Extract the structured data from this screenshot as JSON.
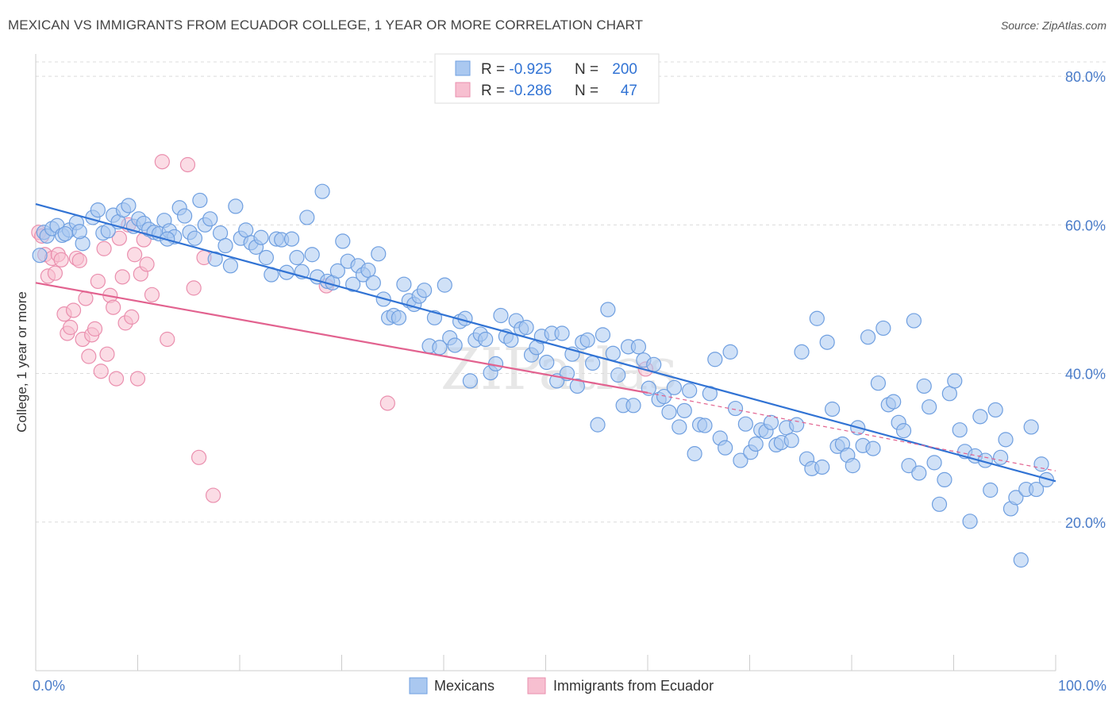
{
  "title": "MEXICAN VS IMMIGRANTS FROM ECUADOR COLLEGE, 1 YEAR OR MORE CORRELATION CHART",
  "source": "Source: ZipAtlas.com",
  "watermark": "ZIPatlas",
  "colors": {
    "blue_fill": "#aac8f0",
    "blue_stroke": "#6f9fe0",
    "blue_line": "#3173d4",
    "pink_fill": "#f7bfd0",
    "pink_stroke": "#ea8fae",
    "pink_line": "#e2628f",
    "axis_label": "#4a7cc9"
  },
  "legend": {
    "rows": [
      {
        "r_label": "R =",
        "r_value": "-0.925",
        "n_label": "N =",
        "n_value": "200"
      },
      {
        "r_label": "R =",
        "r_value": "-0.286",
        "n_label": "N =",
        "n_value": "47"
      }
    ]
  },
  "chart_data": {
    "type": "scatter",
    "title": "MEXICAN VS IMMIGRANTS FROM ECUADOR COLLEGE, 1 YEAR OR MORE CORRELATION CHART",
    "xlabel": "",
    "ylabel": "College, 1 year or more",
    "xlim": [
      0,
      100
    ],
    "ylim": [
      0,
      83
    ],
    "x_tick_labels": [
      "0.0%",
      "100.0%"
    ],
    "y_ticks": [
      20,
      40,
      60,
      80
    ],
    "y_tick_labels": [
      "20.0%",
      "40.0%",
      "60.0%",
      "80.0%"
    ],
    "grid": true,
    "legend_placement": "top-center",
    "series": [
      {
        "name": "Mexicans",
        "r": -0.925,
        "n": 200,
        "trend": {
          "x": [
            0,
            100
          ],
          "y": [
            62.8,
            25.5
          ]
        },
        "points": [
          [
            0.4,
            55.9
          ],
          [
            0.8,
            59.0
          ],
          [
            1.1,
            58.5
          ],
          [
            1.6,
            59.5
          ],
          [
            2.1,
            59.9
          ],
          [
            2.6,
            58.6
          ],
          [
            3.3,
            59.3
          ],
          [
            4.0,
            60.3
          ],
          [
            4.6,
            57.5
          ],
          [
            5.6,
            61.0
          ],
          [
            6.1,
            62.0
          ],
          [
            6.6,
            58.9
          ],
          [
            7.1,
            59.2
          ],
          [
            7.6,
            61.3
          ],
          [
            8.1,
            60.4
          ],
          [
            8.6,
            62.0
          ],
          [
            9.1,
            62.6
          ],
          [
            9.6,
            59.8
          ],
          [
            10.1,
            60.8
          ],
          [
            10.6,
            60.2
          ],
          [
            11.1,
            59.4
          ],
          [
            11.6,
            59.0
          ],
          [
            12.1,
            58.8
          ],
          [
            12.6,
            60.6
          ],
          [
            13.1,
            59.2
          ],
          [
            13.6,
            58.4
          ],
          [
            14.1,
            62.3
          ],
          [
            14.6,
            61.2
          ],
          [
            15.1,
            59.0
          ],
          [
            15.6,
            58.2
          ],
          [
            16.1,
            63.3
          ],
          [
            16.6,
            60.0
          ],
          [
            17.1,
            60.8
          ],
          [
            17.6,
            55.4
          ],
          [
            18.1,
            58.9
          ],
          [
            18.6,
            57.2
          ],
          [
            19.1,
            54.5
          ],
          [
            19.6,
            62.5
          ],
          [
            20.1,
            58.2
          ],
          [
            20.6,
            59.3
          ],
          [
            21.1,
            57.6
          ],
          [
            21.6,
            57.0
          ],
          [
            22.1,
            58.3
          ],
          [
            22.6,
            55.6
          ],
          [
            23.1,
            53.3
          ],
          [
            23.6,
            58.1
          ],
          [
            24.1,
            58.0
          ],
          [
            24.6,
            53.6
          ],
          [
            25.1,
            58.1
          ],
          [
            25.6,
            55.6
          ],
          [
            26.1,
            53.7
          ],
          [
            26.6,
            61.0
          ],
          [
            27.1,
            56.0
          ],
          [
            27.6,
            53.0
          ],
          [
            28.1,
            64.5
          ],
          [
            28.6,
            52.4
          ],
          [
            29.1,
            52.2
          ],
          [
            29.6,
            53.8
          ],
          [
            30.1,
            57.8
          ],
          [
            30.6,
            55.1
          ],
          [
            31.1,
            52.0
          ],
          [
            31.6,
            54.5
          ],
          [
            32.1,
            53.3
          ],
          [
            32.6,
            53.9
          ],
          [
            33.1,
            52.2
          ],
          [
            33.6,
            56.1
          ],
          [
            34.1,
            50.0
          ],
          [
            34.6,
            47.5
          ],
          [
            35.1,
            47.8
          ],
          [
            35.6,
            47.5
          ],
          [
            36.1,
            52.0
          ],
          [
            36.6,
            49.8
          ],
          [
            37.1,
            49.3
          ],
          [
            37.6,
            50.4
          ],
          [
            38.1,
            51.2
          ],
          [
            38.6,
            43.7
          ],
          [
            39.1,
            47.5
          ],
          [
            39.6,
            43.5
          ],
          [
            40.1,
            51.9
          ],
          [
            40.6,
            44.8
          ],
          [
            41.1,
            43.8
          ],
          [
            41.6,
            47.0
          ],
          [
            42.1,
            47.4
          ],
          [
            42.6,
            39.0
          ],
          [
            43.1,
            44.5
          ],
          [
            43.6,
            45.3
          ],
          [
            44.1,
            44.6
          ],
          [
            44.6,
            40.1
          ],
          [
            45.1,
            41.3
          ],
          [
            45.6,
            47.8
          ],
          [
            46.1,
            45.0
          ],
          [
            46.6,
            44.5
          ],
          [
            47.1,
            47.1
          ],
          [
            47.6,
            46.0
          ],
          [
            48.1,
            46.2
          ],
          [
            48.6,
            42.5
          ],
          [
            49.1,
            43.5
          ],
          [
            49.6,
            45.0
          ],
          [
            50.1,
            41.5
          ],
          [
            50.6,
            45.4
          ],
          [
            51.1,
            39.0
          ],
          [
            51.6,
            45.4
          ],
          [
            52.1,
            40.0
          ],
          [
            52.6,
            42.6
          ],
          [
            53.1,
            38.3
          ],
          [
            53.6,
            44.2
          ],
          [
            54.1,
            44.5
          ],
          [
            54.6,
            41.4
          ],
          [
            55.1,
            33.1
          ],
          [
            55.6,
            45.2
          ],
          [
            56.1,
            48.6
          ],
          [
            56.6,
            42.7
          ],
          [
            57.1,
            39.8
          ],
          [
            57.6,
            35.7
          ],
          [
            58.1,
            43.6
          ],
          [
            58.6,
            35.7
          ],
          [
            59.1,
            43.6
          ],
          [
            59.6,
            41.8
          ],
          [
            60.1,
            38.0
          ],
          [
            60.6,
            41.2
          ],
          [
            61.1,
            36.5
          ],
          [
            61.6,
            36.9
          ],
          [
            62.1,
            34.8
          ],
          [
            62.6,
            38.1
          ],
          [
            63.1,
            32.8
          ],
          [
            63.6,
            35.0
          ],
          [
            64.1,
            37.7
          ],
          [
            64.6,
            29.2
          ],
          [
            65.1,
            33.1
          ],
          [
            65.6,
            33.0
          ],
          [
            66.1,
            37.3
          ],
          [
            66.6,
            41.9
          ],
          [
            67.1,
            31.3
          ],
          [
            67.6,
            30.0
          ],
          [
            68.1,
            42.9
          ],
          [
            68.6,
            35.3
          ],
          [
            69.1,
            28.3
          ],
          [
            69.6,
            33.2
          ],
          [
            70.1,
            29.4
          ],
          [
            70.6,
            30.5
          ],
          [
            71.1,
            32.4
          ],
          [
            71.6,
            32.2
          ],
          [
            72.1,
            33.4
          ],
          [
            72.6,
            30.4
          ],
          [
            73.1,
            30.7
          ],
          [
            73.6,
            32.7
          ],
          [
            74.1,
            31.0
          ],
          [
            74.6,
            33.1
          ],
          [
            75.1,
            42.9
          ],
          [
            75.6,
            28.5
          ],
          [
            76.1,
            27.2
          ],
          [
            76.6,
            47.4
          ],
          [
            77.1,
            27.4
          ],
          [
            77.6,
            44.2
          ],
          [
            78.1,
            35.2
          ],
          [
            78.6,
            30.2
          ],
          [
            79.1,
            30.5
          ],
          [
            79.6,
            29.0
          ],
          [
            80.1,
            27.6
          ],
          [
            80.6,
            32.7
          ],
          [
            81.1,
            30.3
          ],
          [
            81.6,
            44.9
          ],
          [
            82.1,
            29.9
          ],
          [
            82.6,
            38.7
          ],
          [
            83.1,
            46.1
          ],
          [
            83.6,
            35.8
          ],
          [
            84.1,
            36.2
          ],
          [
            84.6,
            33.4
          ],
          [
            85.1,
            32.3
          ],
          [
            85.6,
            27.6
          ],
          [
            86.1,
            47.1
          ],
          [
            86.6,
            26.6
          ],
          [
            87.1,
            38.3
          ],
          [
            87.6,
            35.5
          ],
          [
            88.1,
            28.0
          ],
          [
            88.6,
            22.4
          ],
          [
            89.1,
            25.7
          ],
          [
            89.6,
            37.3
          ],
          [
            90.1,
            39.0
          ],
          [
            90.6,
            32.4
          ],
          [
            91.1,
            29.5
          ],
          [
            91.6,
            20.1
          ],
          [
            92.1,
            28.9
          ],
          [
            92.6,
            34.2
          ],
          [
            93.1,
            28.3
          ],
          [
            93.6,
            24.3
          ],
          [
            94.1,
            35.1
          ],
          [
            94.6,
            28.7
          ],
          [
            95.1,
            31.1
          ],
          [
            95.6,
            21.8
          ],
          [
            96.1,
            23.3
          ],
          [
            96.6,
            14.9
          ],
          [
            97.1,
            24.4
          ],
          [
            97.6,
            32.8
          ],
          [
            98.1,
            24.4
          ],
          [
            98.6,
            27.8
          ],
          [
            99.1,
            25.7
          ],
          [
            2.9,
            58.8
          ],
          [
            4.3,
            59.1
          ],
          [
            12.9,
            58.1
          ]
        ]
      },
      {
        "name": "Immigrants from Ecuador",
        "r": -0.286,
        "n": 47,
        "trend": {
          "x": [
            0,
            60
          ],
          "y": [
            52.2,
            37.4
          ]
        },
        "trend_dashed": {
          "x": [
            60,
            100
          ],
          "y": [
            37.4,
            26.9
          ]
        },
        "points": [
          [
            0.3,
            59.0
          ],
          [
            0.6,
            58.5
          ],
          [
            0.9,
            56.0
          ],
          [
            1.2,
            53.1
          ],
          [
            1.6,
            55.5
          ],
          [
            1.9,
            53.5
          ],
          [
            2.2,
            56.0
          ],
          [
            2.5,
            55.3
          ],
          [
            2.8,
            48.0
          ],
          [
            3.1,
            45.4
          ],
          [
            3.4,
            46.2
          ],
          [
            3.7,
            48.5
          ],
          [
            4.0,
            55.5
          ],
          [
            4.3,
            55.2
          ],
          [
            4.6,
            44.6
          ],
          [
            4.9,
            50.1
          ],
          [
            5.2,
            42.3
          ],
          [
            5.5,
            45.2
          ],
          [
            5.8,
            46.0
          ],
          [
            6.1,
            52.4
          ],
          [
            6.4,
            40.3
          ],
          [
            6.7,
            56.8
          ],
          [
            7.0,
            42.6
          ],
          [
            7.3,
            50.5
          ],
          [
            7.6,
            48.9
          ],
          [
            7.9,
            39.3
          ],
          [
            8.2,
            58.2
          ],
          [
            8.5,
            53.0
          ],
          [
            8.8,
            46.8
          ],
          [
            9.1,
            60.0
          ],
          [
            9.4,
            47.6
          ],
          [
            9.7,
            56.0
          ],
          [
            10.0,
            39.3
          ],
          [
            10.3,
            53.4
          ],
          [
            10.6,
            58.0
          ],
          [
            10.9,
            54.7
          ],
          [
            11.4,
            50.6
          ],
          [
            12.4,
            68.5
          ],
          [
            12.9,
            44.6
          ],
          [
            14.9,
            68.1
          ],
          [
            15.5,
            51.5
          ],
          [
            16.0,
            28.7
          ],
          [
            16.5,
            55.6
          ],
          [
            17.4,
            23.6
          ],
          [
            28.5,
            51.8
          ],
          [
            34.5,
            36.0
          ],
          [
            59.8,
            40.6
          ]
        ]
      }
    ]
  },
  "bottom_legend": [
    {
      "label": "Mexicans"
    },
    {
      "label": "Immigrants from Ecuador"
    }
  ]
}
